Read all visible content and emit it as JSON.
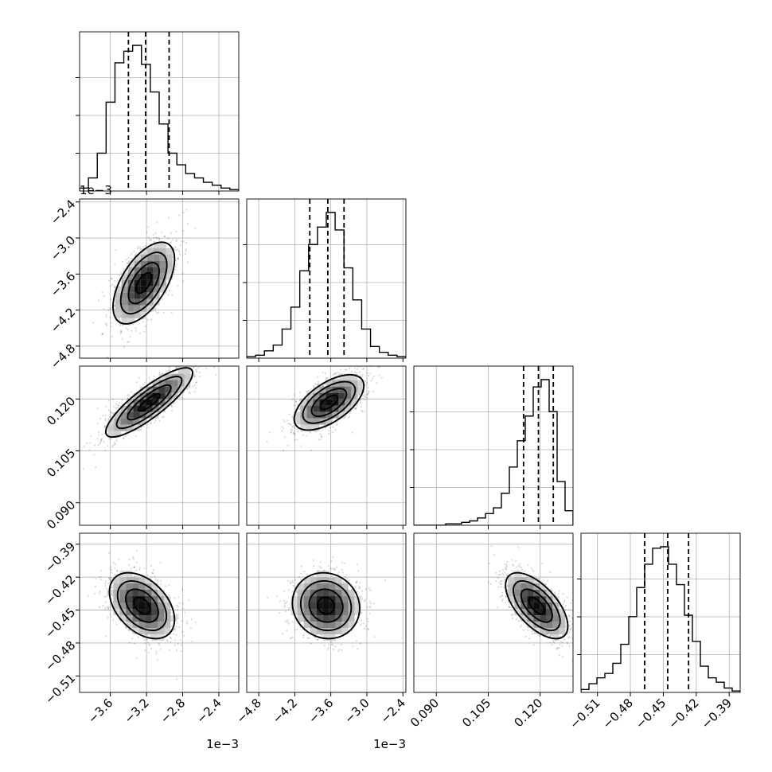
{
  "chart_data": {
    "type": "corner",
    "grid": true,
    "variables": [
      {
        "ticks": [
          -3.6,
          -3.2,
          -2.8,
          -2.4
        ],
        "tick_labels": [
          "−3.6",
          "−3.2",
          "−2.8",
          "−2.4"
        ],
        "range": [
          -3.94,
          -2.18
        ],
        "offset_label": "1e−3",
        "quantiles": [
          -3.4,
          -3.21,
          -2.95
        ],
        "hist": [
          0.02,
          0.09,
          0.26,
          0.61,
          0.88,
          0.96,
          1.0,
          0.87,
          0.68,
          0.46,
          0.26,
          0.18,
          0.12,
          0.09,
          0.06,
          0.04,
          0.02,
          0.01
        ]
      },
      {
        "ticks": [
          -4.8,
          -4.2,
          -3.6,
          -3.0,
          -2.4
        ],
        "tick_labels": [
          "−4.8",
          "−4.2",
          "−3.6",
          "−3.0",
          "−2.4"
        ],
        "range": [
          -5.0,
          -2.35
        ],
        "offset_label": "1e−3",
        "quantiles": [
          -3.95,
          -3.65,
          -3.38
        ],
        "hist": [
          0.01,
          0.02,
          0.05,
          0.09,
          0.2,
          0.35,
          0.6,
          0.78,
          0.9,
          1.0,
          0.88,
          0.62,
          0.4,
          0.2,
          0.08,
          0.04,
          0.02,
          0.01
        ]
      },
      {
        "ticks": [
          0.09,
          0.105,
          0.12
        ],
        "tick_labels": [
          "0.090",
          "0.105",
          "0.120"
        ],
        "range": [
          0.0835,
          0.1295
        ],
        "quantiles": [
          0.1152,
          0.1195,
          0.1238
        ],
        "hist": [
          0.0,
          0.0,
          0.0,
          0.0,
          0.01,
          0.01,
          0.02,
          0.03,
          0.05,
          0.08,
          0.12,
          0.22,
          0.4,
          0.58,
          0.75,
          0.95,
          1.0,
          0.78,
          0.3,
          0.1
        ]
      },
      {
        "ticks": [
          -0.51,
          -0.48,
          -0.45,
          -0.42,
          -0.39
        ],
        "tick_labels": [
          "−0.51",
          "−0.48",
          "−0.45",
          "−0.42",
          "−0.39"
        ],
        "range": [
          -0.525,
          -0.38
        ],
        "quantiles": [
          -0.467,
          -0.446,
          -0.427
        ],
        "hist": [
          0.02,
          0.06,
          0.1,
          0.13,
          0.2,
          0.33,
          0.52,
          0.72,
          0.88,
          0.99,
          1.0,
          0.88,
          0.74,
          0.53,
          0.35,
          0.18,
          0.1,
          0.07,
          0.03,
          0.01
        ]
      }
    ],
    "pairs": [
      {
        "row": 1,
        "col": 0,
        "mean": [
          -3.23,
          -3.75
        ],
        "sd": [
          0.17,
          0.34
        ],
        "rho": 0.58
      },
      {
        "row": 2,
        "col": 0,
        "mean": [
          -3.17,
          0.119
        ],
        "sd": [
          0.24,
          0.005
        ],
        "rho": 0.85
      },
      {
        "row": 2,
        "col": 1,
        "mean": [
          -3.63,
          0.119
        ],
        "sd": [
          0.29,
          0.004
        ],
        "rho": 0.6
      },
      {
        "row": 3,
        "col": 0,
        "mean": [
          -3.25,
          -0.446
        ],
        "sd": [
          0.18,
          0.015
        ],
        "rho": -0.42
      },
      {
        "row": 3,
        "col": 1,
        "mean": [
          -3.68,
          -0.446
        ],
        "sd": [
          0.28,
          0.015
        ],
        "rho": -0.08
      },
      {
        "row": 3,
        "col": 2,
        "mean": [
          0.119,
          -0.446
        ],
        "sd": [
          0.0045,
          0.015
        ],
        "rho": -0.62
      }
    ]
  }
}
